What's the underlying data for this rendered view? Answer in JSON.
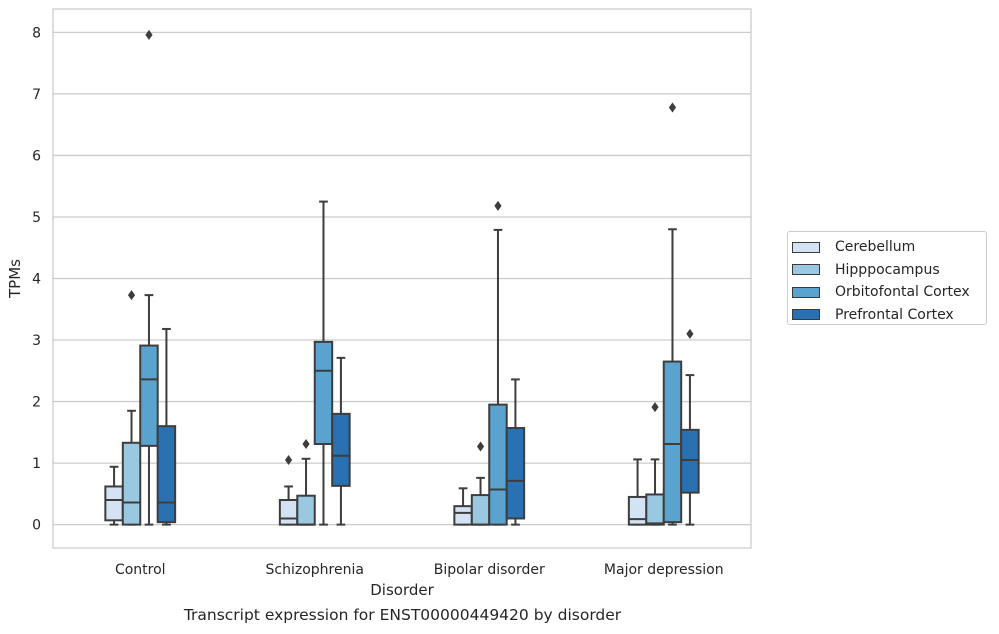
{
  "chart_data": {
    "type": "box",
    "caption": "Transcript expression for ENST00000449420 by disorder",
    "xlabel": "Disorder",
    "ylabel": "TPMs",
    "ylim": [
      -0.38,
      8.38
    ],
    "yticks": [
      0,
      1,
      2,
      3,
      4,
      5,
      6,
      7,
      8
    ],
    "grid": "horizontal",
    "legend_position": "right",
    "categories": [
      "Control",
      "Schizophrenia",
      "Bipolar disorder",
      "Major depression"
    ],
    "series": [
      {
        "name": "Cerebellum",
        "color": "#d3e3f3",
        "boxes": [
          {
            "q1": 0.07,
            "median": 0.4,
            "q3": 0.62,
            "whisker_low": 0.0,
            "whisker_high": 0.94,
            "outliers": []
          },
          {
            "q1": 0.0,
            "median": 0.1,
            "q3": 0.4,
            "whisker_low": 0.0,
            "whisker_high": 0.62,
            "outliers": [
              1.05
            ]
          },
          {
            "q1": 0.0,
            "median": 0.19,
            "q3": 0.3,
            "whisker_low": 0.0,
            "whisker_high": 0.59,
            "outliers": []
          },
          {
            "q1": 0.0,
            "median": 0.09,
            "q3": 0.45,
            "whisker_low": 0.0,
            "whisker_high": 1.06,
            "outliers": []
          }
        ]
      },
      {
        "name": "Hipppocampus",
        "color": "#9ac8e0",
        "boxes": [
          {
            "q1": 0.0,
            "median": 0.36,
            "q3": 1.33,
            "whisker_low": 0.0,
            "whisker_high": 1.85,
            "outliers": [
              3.73
            ]
          },
          {
            "q1": 0.0,
            "median": 0.0,
            "q3": 0.47,
            "whisker_low": 0.0,
            "whisker_high": 1.07,
            "outliers": [
              1.31
            ]
          },
          {
            "q1": 0.0,
            "median": 0.0,
            "q3": 0.48,
            "whisker_low": 0.0,
            "whisker_high": 0.76,
            "outliers": [
              1.27
            ]
          },
          {
            "q1": 0.0,
            "median": 0.02,
            "q3": 0.49,
            "whisker_low": 0.0,
            "whisker_high": 1.06,
            "outliers": [
              1.91
            ]
          }
        ]
      },
      {
        "name": "Orbitofontal Cortex",
        "color": "#5ba3cf",
        "boxes": [
          {
            "q1": 1.28,
            "median": 2.36,
            "q3": 2.91,
            "whisker_low": 0.0,
            "whisker_high": 3.73,
            "outliers": [
              7.96
            ]
          },
          {
            "q1": 1.31,
            "median": 2.5,
            "q3": 2.97,
            "whisker_low": 0.0,
            "whisker_high": 5.25,
            "outliers": []
          },
          {
            "q1": 0.0,
            "median": 0.57,
            "q3": 1.95,
            "whisker_low": 0.0,
            "whisker_high": 4.79,
            "outliers": [
              5.18
            ]
          },
          {
            "q1": 0.04,
            "median": 1.31,
            "q3": 2.65,
            "whisker_low": 0.0,
            "whisker_high": 4.8,
            "outliers": [
              6.78
            ]
          }
        ]
      },
      {
        "name": "Prefrontal Cortex",
        "color": "#2a71b2",
        "boxes": [
          {
            "q1": 0.04,
            "median": 0.36,
            "q3": 1.6,
            "whisker_low": 0.0,
            "whisker_high": 3.18,
            "outliers": []
          },
          {
            "q1": 0.63,
            "median": 1.12,
            "q3": 1.8,
            "whisker_low": 0.0,
            "whisker_high": 2.71,
            "outliers": []
          },
          {
            "q1": 0.1,
            "median": 0.71,
            "q3": 1.57,
            "whisker_low": 0.0,
            "whisker_high": 2.36,
            "outliers": []
          },
          {
            "q1": 0.52,
            "median": 1.05,
            "q3": 1.54,
            "whisker_low": 0.0,
            "whisker_high": 2.43,
            "outliers": [
              3.1
            ]
          }
        ]
      }
    ]
  }
}
